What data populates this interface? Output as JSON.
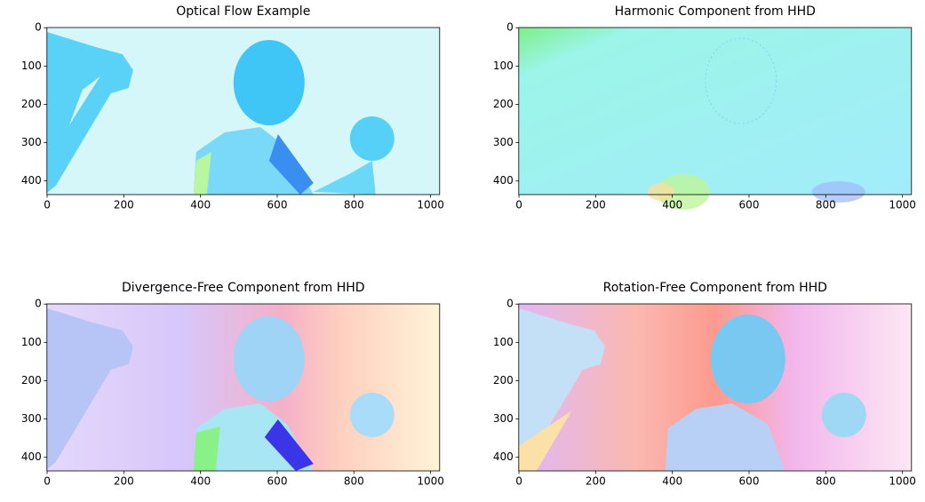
{
  "chart_data": [
    {
      "type": "image",
      "title": "Optical Flow Example",
      "xlim": [
        -0.5,
        1023.5
      ],
      "ylim": [
        435.5,
        -0.5
      ],
      "xticks": [
        0,
        200,
        400,
        600,
        800,
        1000
      ],
      "yticks": [
        0,
        100,
        200,
        300,
        400
      ]
    },
    {
      "type": "image",
      "title": "Harmonic Component from HHD",
      "xlim": [
        -0.5,
        1023.5
      ],
      "ylim": [
        435.5,
        -0.5
      ],
      "xticks": [
        0,
        200,
        400,
        600,
        800,
        1000
      ],
      "yticks": [
        0,
        100,
        200,
        300,
        400
      ]
    },
    {
      "type": "image",
      "title": "Divergence-Free Component from HHD",
      "xlim": [
        -0.5,
        1023.5
      ],
      "ylim": [
        435.5,
        -0.5
      ],
      "xticks": [
        0,
        200,
        400,
        600,
        800,
        1000
      ],
      "yticks": [
        0,
        100,
        200,
        300,
        400
      ]
    },
    {
      "type": "image",
      "title": "Rotation-Free Component from HHD",
      "xlim": [
        -0.5,
        1023.5
      ],
      "ylim": [
        435.5,
        -0.5
      ],
      "xticks": [
        0,
        200,
        400,
        600,
        800,
        1000
      ],
      "yticks": [
        0,
        100,
        200,
        300,
        400
      ]
    }
  ]
}
